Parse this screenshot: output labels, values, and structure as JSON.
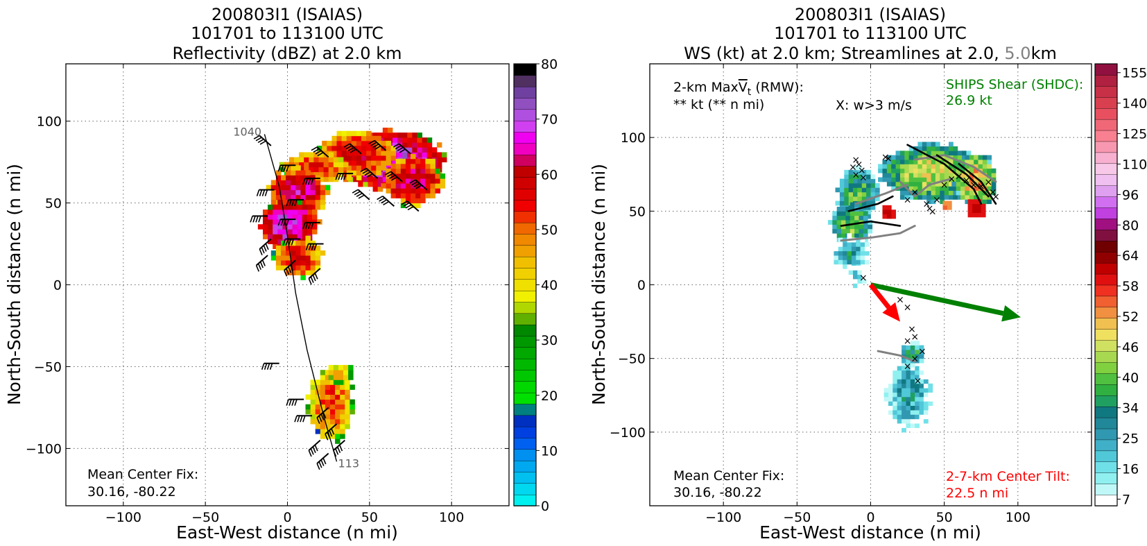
{
  "chart_data": [
    {
      "type": "heatmap",
      "title": [
        "200803I1 (ISAIAS)",
        "101701 to 113100 UTC",
        "Reflectivity (dBZ) at 2.0 km"
      ],
      "xlabel": "East-West distance (n mi)",
      "ylabel": "North-South distance (n mi)",
      "xlim": [
        -135,
        135
      ],
      "ylim": [
        -135,
        135
      ],
      "xticks": [
        -100,
        -50,
        0,
        50,
        100
      ],
      "yticks": [
        -100,
        -50,
        0,
        50,
        100
      ],
      "xtick_labels": [
        "−100",
        "−50",
        "0",
        "50",
        "100"
      ],
      "ytick_labels": [
        "−100",
        "−50",
        "0",
        "50",
        "100"
      ],
      "grid": true,
      "colorbar": {
        "min": 0,
        "max": 80,
        "ticks": [
          0,
          10,
          20,
          30,
          40,
          50,
          60,
          70,
          80
        ],
        "tick_labels": [
          "0",
          "10",
          "20",
          "30",
          "40",
          "50",
          "60",
          "70",
          "80"
        ],
        "colors": [
          "#00f0f0",
          "#00d8f0",
          "#00c0f0",
          "#00a8f0",
          "#0090f0",
          "#0060f0",
          "#0040e0",
          "#0030c0",
          "#008080",
          "#00e000",
          "#00d800",
          "#00c800",
          "#00b800",
          "#00a800",
          "#009800",
          "#008800",
          "#60b000",
          "#b0d800",
          "#f0f000",
          "#f0e000",
          "#f0d000",
          "#f0c000",
          "#f0a000",
          "#f08800",
          "#f06800",
          "#f03000",
          "#f00000",
          "#e00000",
          "#d00000",
          "#c00000",
          "#d00060",
          "#f000c0",
          "#f000f0",
          "#d040f0",
          "#b050e0",
          "#9050c0",
          "#7040a0",
          "#503060",
          "#000000"
        ]
      },
      "blobs": [
        {
          "x": 60,
          "y": 75,
          "rx": 35,
          "ry": 18,
          "level": 33
        },
        {
          "x": 40,
          "y": 78,
          "rx": 25,
          "ry": 14,
          "level": 28
        },
        {
          "x": 75,
          "y": 62,
          "rx": 18,
          "ry": 15,
          "level": 30
        },
        {
          "x": 15,
          "y": 70,
          "rx": 20,
          "ry": 10,
          "level": 26
        },
        {
          "x": 5,
          "y": 55,
          "rx": 18,
          "ry": 15,
          "level": 30
        },
        {
          "x": 0,
          "y": 35,
          "rx": 18,
          "ry": 16,
          "level": 33
        },
        {
          "x": 5,
          "y": 15,
          "rx": 15,
          "ry": 12,
          "level": 27
        },
        {
          "x": 25,
          "y": -75,
          "rx": 14,
          "ry": 22,
          "level": 25
        },
        {
          "x": 30,
          "y": -55,
          "rx": 8,
          "ry": 6,
          "level": 22
        }
      ],
      "track": [
        [
          -14,
          92
        ],
        [
          -5,
          60
        ],
        [
          0,
          30
        ],
        [
          5,
          -5
        ],
        [
          12,
          -40
        ],
        [
          22,
          -80
        ],
        [
          30,
          -108
        ]
      ],
      "track_start_label": "1040",
      "track_end_label": "113",
      "barbs": [
        {
          "x": -10,
          "y": 85,
          "d": "NW"
        },
        {
          "x": 5,
          "y": 73,
          "d": "W"
        },
        {
          "x": 25,
          "y": 78,
          "d": "NW"
        },
        {
          "x": 45,
          "y": 80,
          "d": "NW"
        },
        {
          "x": 60,
          "y": 82,
          "d": "NW"
        },
        {
          "x": 75,
          "y": 80,
          "d": "NW"
        },
        {
          "x": 20,
          "y": 65,
          "d": "W"
        },
        {
          "x": 40,
          "y": 68,
          "d": "W"
        },
        {
          "x": 55,
          "y": 65,
          "d": "NW"
        },
        {
          "x": 70,
          "y": 63,
          "d": "NW"
        },
        {
          "x": 85,
          "y": 58,
          "d": "NW"
        },
        {
          "x": -8,
          "y": 58,
          "d": "W"
        },
        {
          "x": 10,
          "y": 52,
          "d": "W"
        },
        {
          "x": 50,
          "y": 52,
          "d": "NW"
        },
        {
          "x": 65,
          "y": 48,
          "d": "NW"
        },
        {
          "x": 80,
          "y": 45,
          "d": "NW"
        },
        {
          "x": -12,
          "y": 42,
          "d": "W"
        },
        {
          "x": 5,
          "y": 40,
          "d": "W"
        },
        {
          "x": 20,
          "y": 38,
          "d": "W"
        },
        {
          "x": -10,
          "y": 28,
          "d": "SW"
        },
        {
          "x": 8,
          "y": 28,
          "d": "W"
        },
        {
          "x": 22,
          "y": 25,
          "d": "W"
        },
        {
          "x": -12,
          "y": 18,
          "d": "SW"
        },
        {
          "x": 5,
          "y": 15,
          "d": "SW"
        },
        {
          "x": 20,
          "y": 10,
          "d": "SW"
        },
        {
          "x": -5,
          "y": -48,
          "d": "W"
        },
        {
          "x": 10,
          "y": -70,
          "d": "W"
        },
        {
          "x": 25,
          "y": -75,
          "d": "SW"
        },
        {
          "x": 15,
          "y": -80,
          "d": "W"
        },
        {
          "x": 30,
          "y": -85,
          "d": "SW"
        },
        {
          "x": 20,
          "y": -95,
          "d": "SW"
        },
        {
          "x": 35,
          "y": -95,
          "d": "SW"
        },
        {
          "x": 25,
          "y": -103,
          "d": "SW"
        }
      ],
      "annotation_center_fix": [
        "Mean Center Fix:",
        "30.16, -80.22"
      ]
    },
    {
      "type": "heatmap",
      "title": [
        "200803I1 (ISAIAS)",
        "101701 to 113100 UTC"
      ],
      "title_line3": {
        "part1": "WS (kt) at 2.0 km; Streamlines at 2.0, ",
        "part2": "5.0",
        "part3": "km",
        "part2_color": "#808080"
      },
      "xlabel": "East-West distance (n mi)",
      "ylabel": "North-South distance (n mi)",
      "xlim": [
        -150,
        150
      ],
      "ylim": [
        -150,
        150
      ],
      "xticks": [
        -100,
        -50,
        0,
        50,
        100
      ],
      "yticks": [
        -100,
        -50,
        0,
        50,
        100
      ],
      "xtick_labels": [
        "−100",
        "−50",
        "0",
        "50",
        "100"
      ],
      "ytick_labels": [
        "−100",
        "−50",
        "0",
        "50",
        "100"
      ],
      "grid": true,
      "colorbar": {
        "ticks": [
          7,
          16,
          25,
          34,
          40,
          46,
          52,
          58,
          64,
          80,
          96,
          110,
          125,
          140,
          155
        ],
        "tick_labels": [
          "7",
          "16",
          "25",
          "34",
          "40",
          "46",
          "52",
          "58",
          "64",
          "80",
          "96",
          "110",
          "125",
          "140",
          "155"
        ],
        "colors": [
          "#ffffff",
          "#c0f8f8",
          "#90f0f0",
          "#70e0e8",
          "#50c8d8",
          "#40b0c8",
          "#3098b0",
          "#208898",
          "#107880",
          "#20a060",
          "#30b040",
          "#50c040",
          "#80d040",
          "#a8d850",
          "#d0e060",
          "#f0e060",
          "#f0c050",
          "#f09040",
          "#f06030",
          "#f03020",
          "#e01010",
          "#c00000",
          "#900000",
          "#700000",
          "#801040",
          "#a01080",
          "#c040e0",
          "#d070f0",
          "#e0a0f0",
          "#f0c0f0",
          "#f8c8e8",
          "#f8b0d0",
          "#f898b0",
          "#f88090",
          "#f06878",
          "#e85060",
          "#d84050",
          "#c83048",
          "#b02040",
          "#901040"
        ]
      },
      "blobs": [
        {
          "x": 40,
          "y": 75,
          "rx": 35,
          "ry": 20,
          "level": 14
        },
        {
          "x": 70,
          "y": 70,
          "rx": 15,
          "ry": 18,
          "level": 16
        },
        {
          "x": -10,
          "y": 60,
          "rx": 14,
          "ry": 18,
          "level": 11
        },
        {
          "x": -15,
          "y": 40,
          "rx": 14,
          "ry": 14,
          "level": 12
        },
        {
          "x": -15,
          "y": 20,
          "rx": 13,
          "ry": 12,
          "level": 7
        },
        {
          "x": -10,
          "y": 5,
          "rx": 8,
          "ry": 7,
          "level": 3
        },
        {
          "x": 25,
          "y": -75,
          "rx": 16,
          "ry": 25,
          "level": 7
        },
        {
          "x": 27,
          "y": -48,
          "rx": 9,
          "ry": 8,
          "level": 9
        }
      ],
      "hot_spots": [
        {
          "x": 70,
          "y": 50,
          "r": 7,
          "level": 20
        },
        {
          "x": 50,
          "y": 52,
          "r": 4,
          "level": 17
        },
        {
          "x": 10,
          "y": 47,
          "r": 5,
          "level": 20
        }
      ],
      "streamlines_black": [
        [
          [
            25,
            95
          ],
          [
            50,
            82
          ],
          [
            70,
            65
          ],
          [
            75,
            55
          ]
        ],
        [
          [
            45,
            88
          ],
          [
            65,
            75
          ],
          [
            80,
            60
          ]
        ],
        [
          [
            60,
            82
          ],
          [
            75,
            70
          ],
          [
            85,
            55
          ]
        ],
        [
          [
            -20,
            40
          ],
          [
            0,
            43
          ],
          [
            20,
            40
          ]
        ],
        [
          [
            -15,
            50
          ],
          [
            5,
            55
          ],
          [
            15,
            60
          ]
        ]
      ],
      "streamlines_gray": [
        [
          [
            30,
            85
          ],
          [
            50,
            88
          ],
          [
            70,
            80
          ],
          [
            85,
            70
          ]
        ],
        [
          [
            20,
            70
          ],
          [
            30,
            60
          ],
          [
            40,
            68
          ],
          [
            55,
            72
          ]
        ],
        [
          [
            -20,
            30
          ],
          [
            0,
            32
          ],
          [
            20,
            35
          ],
          [
            30,
            40
          ]
        ],
        [
          [
            -10,
            55
          ],
          [
            10,
            62
          ],
          [
            25,
            68
          ]
        ],
        [
          [
            5,
            -45
          ],
          [
            20,
            -48
          ],
          [
            30,
            -52
          ]
        ]
      ],
      "x_markers": [
        [
          -10,
          85
        ],
        [
          -8,
          82
        ],
        [
          -12,
          80
        ],
        [
          -6,
          78
        ],
        [
          -10,
          75
        ],
        [
          -5,
          73
        ],
        [
          10,
          87
        ],
        [
          12,
          86
        ],
        [
          25,
          58
        ],
        [
          30,
          63
        ],
        [
          38,
          55
        ],
        [
          40,
          52
        ],
        [
          42,
          50
        ],
        [
          45,
          58
        ],
        [
          50,
          68
        ],
        [
          55,
          72
        ],
        [
          60,
          74
        ],
        [
          65,
          71
        ],
        [
          70,
          68
        ],
        [
          75,
          67
        ],
        [
          80,
          70
        ],
        [
          83,
          63
        ],
        [
          85,
          60
        ],
        [
          -5,
          5
        ],
        [
          20,
          -10
        ],
        [
          25,
          -15
        ],
        [
          28,
          -30
        ],
        [
          30,
          -35
        ],
        [
          25,
          -38
        ],
        [
          35,
          -45
        ],
        [
          30,
          -50
        ],
        [
          25,
          -55
        ],
        [
          32,
          -65
        ]
      ],
      "motion_arrow_red": {
        "x0": 0,
        "y0": 0,
        "x1": 20,
        "y1": -25,
        "color": "#ff0000"
      },
      "shear_arrow_green": {
        "x0": 0,
        "y0": 0,
        "x1": 102,
        "y1": -22,
        "color": "#008000"
      },
      "annotation_rmw": [
        "2-km Max",
        "V",
        "t",
        " (RMW):",
        "** kt (** n mi)"
      ],
      "annotation_w": "X: w>3 m/s",
      "annotation_shear": {
        "lines": [
          "SHIPS Shear (SHDC):",
          "26.9 kt"
        ],
        "color": "#008000"
      },
      "annotation_center_fix": [
        "Mean Center Fix:",
        "30.16, -80.22"
      ],
      "annotation_tilt": {
        "lines": [
          "2-7-km Center Tilt:",
          "22.5 n mi"
        ],
        "color": "#ff0000"
      }
    }
  ]
}
